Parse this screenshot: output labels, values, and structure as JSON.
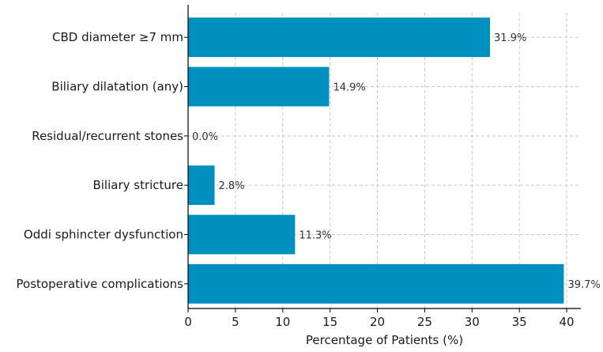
{
  "chart_data": {
    "type": "bar",
    "orientation": "horizontal",
    "title": "",
    "xlabel": "Percentage of Patients (%)",
    "ylabel": "",
    "xlim": [
      0,
      41.5
    ],
    "xticks": [
      0,
      5,
      10,
      15,
      20,
      25,
      30,
      35,
      40
    ],
    "grid": true,
    "bar_color": "#0090c0",
    "categories": [
      "CBD diameter ≥7 mm",
      "Biliary dilatation (any)",
      "Residual/recurrent stones",
      "Biliary stricture",
      "Oddi sphincter dysfunction",
      "Postoperative complications"
    ],
    "values": [
      31.9,
      14.9,
      0.0,
      2.8,
      11.3,
      39.7
    ],
    "value_labels": [
      "31.9%",
      "14.9%",
      "0.0%",
      "2.8%",
      "11.3%",
      "39.7%"
    ]
  }
}
